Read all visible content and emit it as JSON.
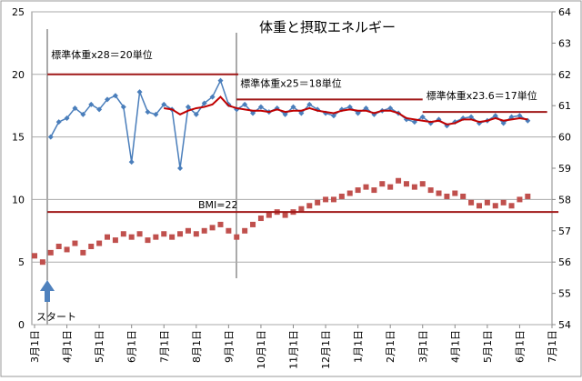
{
  "chart_data": {
    "type": "line",
    "title": "体重と摂取エネルギー",
    "xlim": [
      0,
      16.2
    ],
    "xticks": [
      {
        "value": 0,
        "label": "3月1日"
      },
      {
        "value": 1,
        "label": "4月1日"
      },
      {
        "value": 2,
        "label": "5月1日"
      },
      {
        "value": 3,
        "label": "6月1日"
      },
      {
        "value": 4,
        "label": "7月1日"
      },
      {
        "value": 5,
        "label": "8月1日"
      },
      {
        "value": 6,
        "label": "9月1日"
      },
      {
        "value": 7,
        "label": "10月1日"
      },
      {
        "value": 8,
        "label": "11月1日"
      },
      {
        "value": 9,
        "label": "12月1日"
      },
      {
        "value": 10,
        "label": "1月1日"
      },
      {
        "value": 11,
        "label": "2月1日"
      },
      {
        "value": 12,
        "label": "3月1日"
      },
      {
        "value": 13,
        "label": "4月1日"
      },
      {
        "value": 14,
        "label": "5月1日"
      },
      {
        "value": 15,
        "label": "6月1日"
      },
      {
        "value": 16,
        "label": "7月1日"
      }
    ],
    "ylim": [
      0,
      25
    ],
    "yticks": [
      0,
      5,
      10,
      15,
      20,
      25
    ],
    "y2lim": [
      54,
      64
    ],
    "y2ticks": [
      54,
      55,
      56,
      57,
      58,
      59,
      60,
      61,
      62,
      63,
      64
    ],
    "grid": true,
    "series": [
      {
        "color": "#4a7ebb",
        "style": "line-marker",
        "axis": "y",
        "x": [
          0.5,
          0.75,
          1,
          1.25,
          1.5,
          1.75,
          2,
          2.25,
          2.5,
          2.75,
          3,
          3.25,
          3.5,
          3.75,
          4,
          4.25,
          4.5,
          4.75,
          5,
          5.25,
          5.5,
          5.75,
          6,
          6.25,
          6.5,
          6.75,
          7,
          7.25,
          7.5,
          7.75,
          8,
          8.25,
          8.5,
          8.75,
          9,
          9.25,
          9.5,
          9.75,
          10,
          10.25,
          10.5,
          10.75,
          11,
          11.25,
          11.5,
          11.75,
          12,
          12.25,
          12.5,
          12.75,
          13,
          13.25,
          13.5,
          13.75,
          14,
          14.25,
          14.5,
          14.75,
          15,
          15.25
        ],
        "values": [
          15,
          16.2,
          16.5,
          17.3,
          16.8,
          17.6,
          17.2,
          18,
          18.3,
          17.4,
          13,
          18.6,
          17,
          16.8,
          17.6,
          17.2,
          12.5,
          17.4,
          16.8,
          17.7,
          18.2,
          19.5,
          17.6,
          17.2,
          17.6,
          16.9,
          17.4,
          17,
          17.3,
          16.8,
          17.4,
          16.9,
          17.6,
          17.2,
          16.9,
          16.7,
          17.2,
          17.4,
          16.9,
          17.3,
          16.8,
          17.1,
          17.3,
          16.9,
          16.4,
          16.2,
          16.6,
          16.1,
          16.4,
          15.9,
          16.2,
          16.5,
          16.6,
          16.1,
          16.3,
          16.7,
          16.1,
          16.6,
          16.7,
          16.3
        ]
      },
      {
        "color": "#c00000",
        "style": "line",
        "axis": "y",
        "x": [
          4,
          4.25,
          4.5,
          4.75,
          5,
          5.25,
          5.5,
          5.75,
          6,
          6.25,
          6.5,
          6.75,
          7,
          7.25,
          7.5,
          7.75,
          8,
          8.25,
          8.5,
          8.75,
          9,
          9.25,
          9.5,
          9.75,
          10,
          10.25,
          10.5,
          10.75,
          11,
          11.25,
          11.5,
          11.75,
          12,
          12.25,
          12.5,
          12.75,
          13,
          13.25,
          13.5,
          13.75,
          14,
          14.25,
          14.5,
          14.75,
          15,
          15.25
        ],
        "values": [
          17.3,
          17.2,
          16.8,
          17.1,
          17.3,
          17.4,
          17.6,
          18.2,
          17.5,
          17.3,
          17.2,
          17.1,
          17.1,
          17,
          17.2,
          17,
          17.1,
          17.1,
          17.3,
          17.1,
          17,
          16.9,
          17.1,
          17.2,
          17.1,
          17.1,
          16.9,
          17.1,
          17.1,
          16.9,
          16.5,
          16.4,
          16.3,
          16.2,
          16.3,
          16,
          16.1,
          16.4,
          16.4,
          16.2,
          16.3,
          16.5,
          16.3,
          16.4,
          16.5,
          16.4
        ]
      },
      {
        "color": "#c0504d",
        "style": "marker",
        "axis": "y2",
        "x": [
          0,
          0.25,
          0.5,
          0.75,
          1,
          1.25,
          1.5,
          1.75,
          2,
          2.25,
          2.5,
          2.75,
          3,
          3.25,
          3.5,
          3.75,
          4,
          4.25,
          4.5,
          4.75,
          5,
          5.25,
          5.5,
          5.75,
          6,
          6.25,
          6.5,
          6.75,
          7,
          7.25,
          7.5,
          7.75,
          8,
          8.25,
          8.5,
          8.75,
          9,
          9.25,
          9.5,
          9.75,
          10,
          10.25,
          10.5,
          10.75,
          11,
          11.25,
          11.5,
          11.75,
          12,
          12.25,
          12.5,
          12.75,
          13,
          13.25,
          13.5,
          13.75,
          14,
          14.25,
          14.5,
          14.75,
          15,
          15.25
        ],
        "values": [
          56.2,
          56,
          56.3,
          56.5,
          56.4,
          56.6,
          56.3,
          56.5,
          56.6,
          56.8,
          56.7,
          56.9,
          56.8,
          56.9,
          56.7,
          56.8,
          56.9,
          56.8,
          56.9,
          57,
          56.9,
          57,
          57.1,
          57.2,
          57,
          56.8,
          57,
          57.2,
          57.4,
          57.5,
          57.6,
          57.5,
          57.6,
          57.7,
          57.8,
          57.9,
          58,
          58,
          58.1,
          58.2,
          58.3,
          58.4,
          58.3,
          58.5,
          58.4,
          58.6,
          58.5,
          58.4,
          58.5,
          58.3,
          58.2,
          58.1,
          58.2,
          58.1,
          57.9,
          57.8,
          57.9,
          57.8,
          57.9,
          57.8,
          58,
          58.1
        ]
      }
    ],
    "reference_lines": [
      {
        "label": "標準体重x28＝20単位",
        "axis": "y",
        "value": 20,
        "x": [
          0.4,
          6.3
        ]
      },
      {
        "label": "標準体重x25＝18単位",
        "axis": "y",
        "value": 18,
        "x": [
          6.25,
          12
        ]
      },
      {
        "label": "標準体重x23.6＝17単位",
        "axis": "y",
        "value": 17,
        "x": [
          12,
          15.85
        ]
      },
      {
        "label": "BMI=22",
        "axis": "y2",
        "value": 57.6,
        "x": [
          0.4,
          16.2
        ]
      }
    ],
    "annotation": "スタート"
  }
}
